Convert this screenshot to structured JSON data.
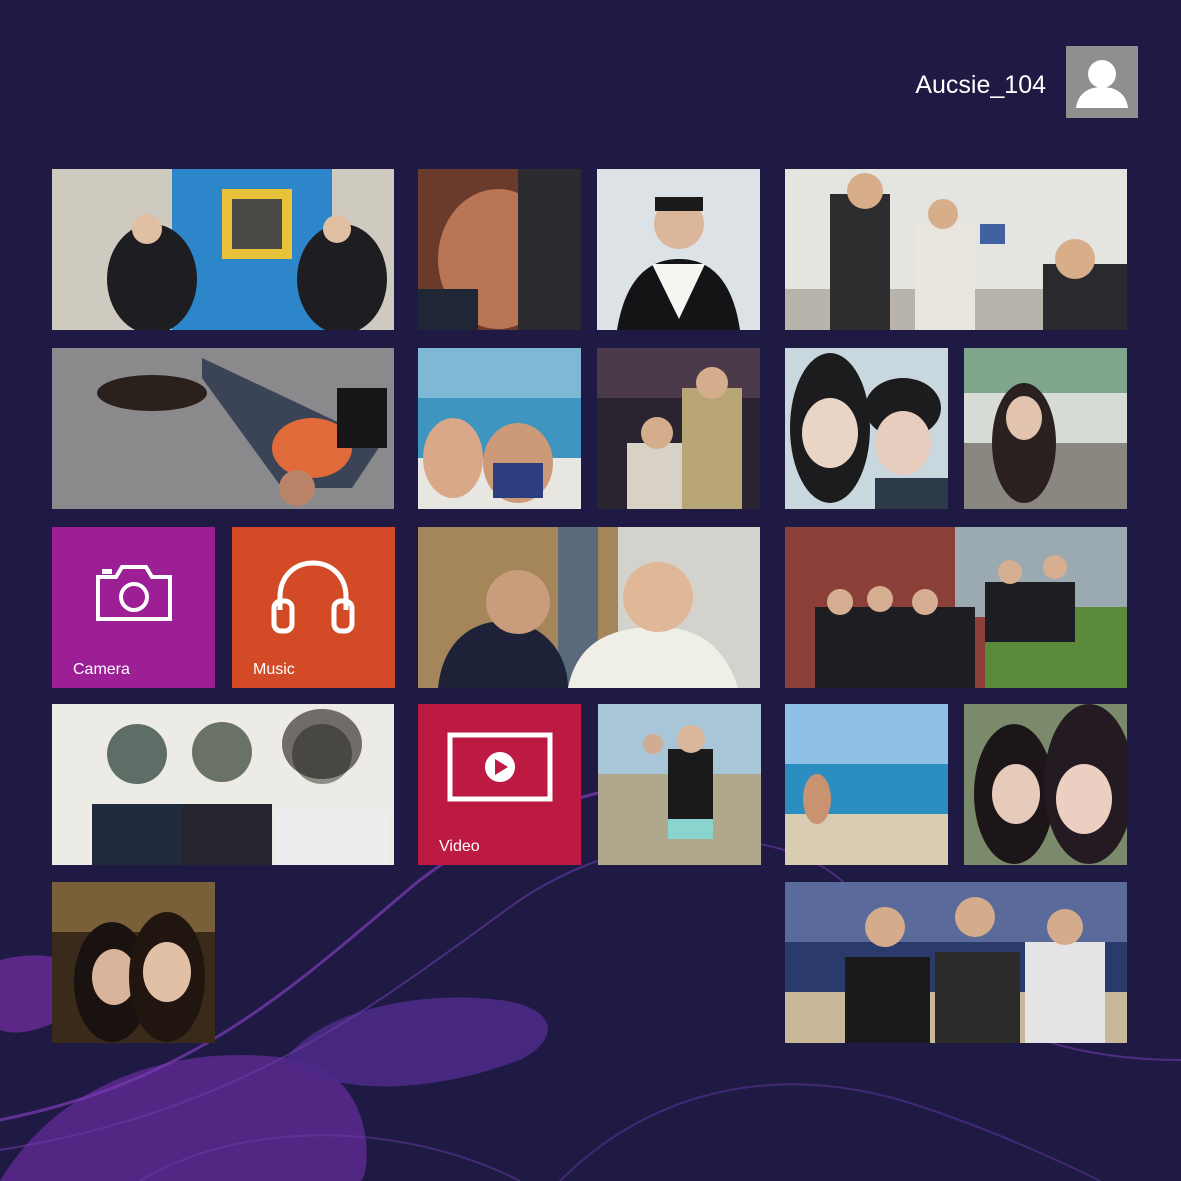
{
  "user": {
    "name": "Aucsie_104",
    "avatar_icon": "person-icon"
  },
  "apps": {
    "camera": {
      "label": "Camera",
      "icon": "camera-icon",
      "color": "#9c1f96"
    },
    "music": {
      "label": "Music",
      "icon": "headphones-icon",
      "color": "#d24b26"
    },
    "video": {
      "label": "Video",
      "icon": "play-icon",
      "color": "#bd1a43"
    }
  },
  "background": {
    "color": "#1e1a43",
    "accent": "#7a2aa6"
  }
}
